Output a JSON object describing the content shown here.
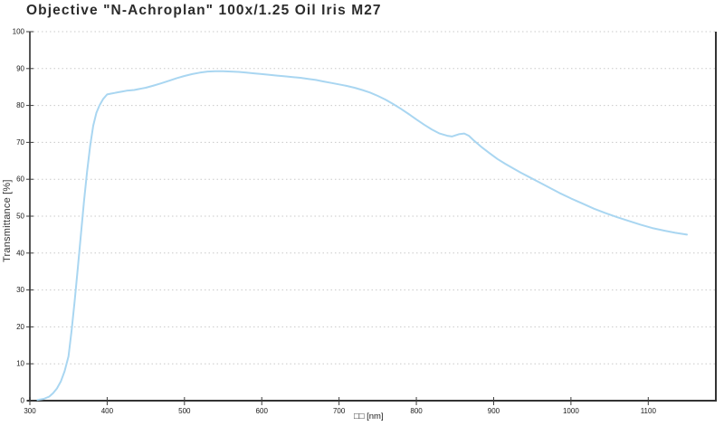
{
  "window": {
    "background": "#ffffff"
  },
  "colors": {
    "curve": "#a9d6f1",
    "grid": "#c9c9c9",
    "axis_left": "#555555",
    "axis_dark": "#333333",
    "tick": "#3a3a3a",
    "tick_text": "#1a1a1a",
    "title_text": "#2b2b2b"
  },
  "chart_data": {
    "type": "line",
    "title": "Objective \"N-Achroplan\" 100x/1.25 Oil Iris M27",
    "xlabel": "□□ [nm]",
    "ylabel": "Transmittance [%]",
    "xlim": [
      300,
      1150
    ],
    "ylim": [
      0,
      100
    ],
    "xticks": [
      300,
      400,
      500,
      600,
      700,
      800,
      900,
      1000,
      1100
    ],
    "yticks": [
      0,
      10,
      20,
      30,
      40,
      50,
      60,
      70,
      80,
      90,
      100
    ],
    "grid": "horizontal dotted lines at every 10%",
    "legend": "none",
    "series": [
      {
        "name": "Transmittance",
        "color": "#a9d6f1",
        "points": [
          [
            310,
            0.2
          ],
          [
            318,
            0.5
          ],
          [
            325,
            1.1
          ],
          [
            330,
            2.0
          ],
          [
            335,
            3.3
          ],
          [
            340,
            5.2
          ],
          [
            345,
            8.0
          ],
          [
            350,
            12.0
          ],
          [
            354,
            19.0
          ],
          [
            358,
            27.0
          ],
          [
            362,
            36.0
          ],
          [
            366,
            45.0
          ],
          [
            370,
            54.0
          ],
          [
            374,
            62.0
          ],
          [
            378,
            69.0
          ],
          [
            382,
            74.5
          ],
          [
            386,
            78.0
          ],
          [
            390,
            80.0
          ],
          [
            395,
            81.8
          ],
          [
            400,
            83.0
          ],
          [
            405,
            83.2
          ],
          [
            410,
            83.4
          ],
          [
            415,
            83.6
          ],
          [
            420,
            83.8
          ],
          [
            425,
            84.0
          ],
          [
            430,
            84.1
          ],
          [
            435,
            84.2
          ],
          [
            440,
            84.4
          ],
          [
            445,
            84.6
          ],
          [
            450,
            84.8
          ],
          [
            460,
            85.4
          ],
          [
            470,
            86.0
          ],
          [
            480,
            86.7
          ],
          [
            490,
            87.4
          ],
          [
            500,
            88.0
          ],
          [
            510,
            88.5
          ],
          [
            520,
            88.9
          ],
          [
            530,
            89.2
          ],
          [
            540,
            89.3
          ],
          [
            550,
            89.3
          ],
          [
            560,
            89.2
          ],
          [
            570,
            89.1
          ],
          [
            580,
            88.9
          ],
          [
            590,
            88.7
          ],
          [
            600,
            88.5
          ],
          [
            610,
            88.3
          ],
          [
            620,
            88.1
          ],
          [
            630,
            87.9
          ],
          [
            640,
            87.7
          ],
          [
            650,
            87.5
          ],
          [
            660,
            87.2
          ],
          [
            670,
            86.9
          ],
          [
            680,
            86.5
          ],
          [
            690,
            86.1
          ],
          [
            700,
            85.7
          ],
          [
            710,
            85.3
          ],
          [
            720,
            84.8
          ],
          [
            730,
            84.2
          ],
          [
            740,
            83.5
          ],
          [
            750,
            82.6
          ],
          [
            760,
            81.6
          ],
          [
            770,
            80.4
          ],
          [
            780,
            79.1
          ],
          [
            790,
            77.7
          ],
          [
            800,
            76.2
          ],
          [
            810,
            74.8
          ],
          [
            820,
            73.5
          ],
          [
            830,
            72.4
          ],
          [
            840,
            71.8
          ],
          [
            846,
            71.6
          ],
          [
            855,
            72.2
          ],
          [
            862,
            72.4
          ],
          [
            868,
            71.8
          ],
          [
            875,
            70.4
          ],
          [
            885,
            68.6
          ],
          [
            895,
            67.0
          ],
          [
            905,
            65.5
          ],
          [
            915,
            64.2
          ],
          [
            925,
            63.0
          ],
          [
            935,
            61.8
          ],
          [
            945,
            60.7
          ],
          [
            955,
            59.6
          ],
          [
            965,
            58.5
          ],
          [
            975,
            57.4
          ],
          [
            985,
            56.3
          ],
          [
            1000,
            54.8
          ],
          [
            1015,
            53.4
          ],
          [
            1030,
            52.0
          ],
          [
            1045,
            50.8
          ],
          [
            1060,
            49.7
          ],
          [
            1075,
            48.7
          ],
          [
            1090,
            47.7
          ],
          [
            1105,
            46.8
          ],
          [
            1120,
            46.1
          ],
          [
            1135,
            45.5
          ],
          [
            1150,
            45.0
          ]
        ]
      }
    ]
  }
}
